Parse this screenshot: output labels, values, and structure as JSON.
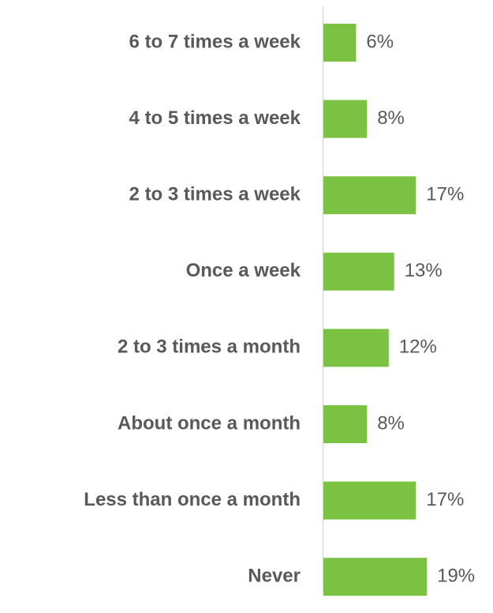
{
  "chart_data": {
    "type": "hbar",
    "categories": [
      "6 to 7 times a week",
      "4 to 5 times a week",
      "2 to 3 times a week",
      "Once a week",
      "2 to 3 times a month",
      "About once a month",
      "Less than once a month",
      "Never"
    ],
    "values": [
      6,
      8,
      17,
      13,
      12,
      8,
      17,
      19
    ],
    "value_labels": [
      "6%",
      "8%",
      "17%",
      "13%",
      "12%",
      "8%",
      "17%",
      "19%"
    ],
    "color": "#7cc242"
  }
}
